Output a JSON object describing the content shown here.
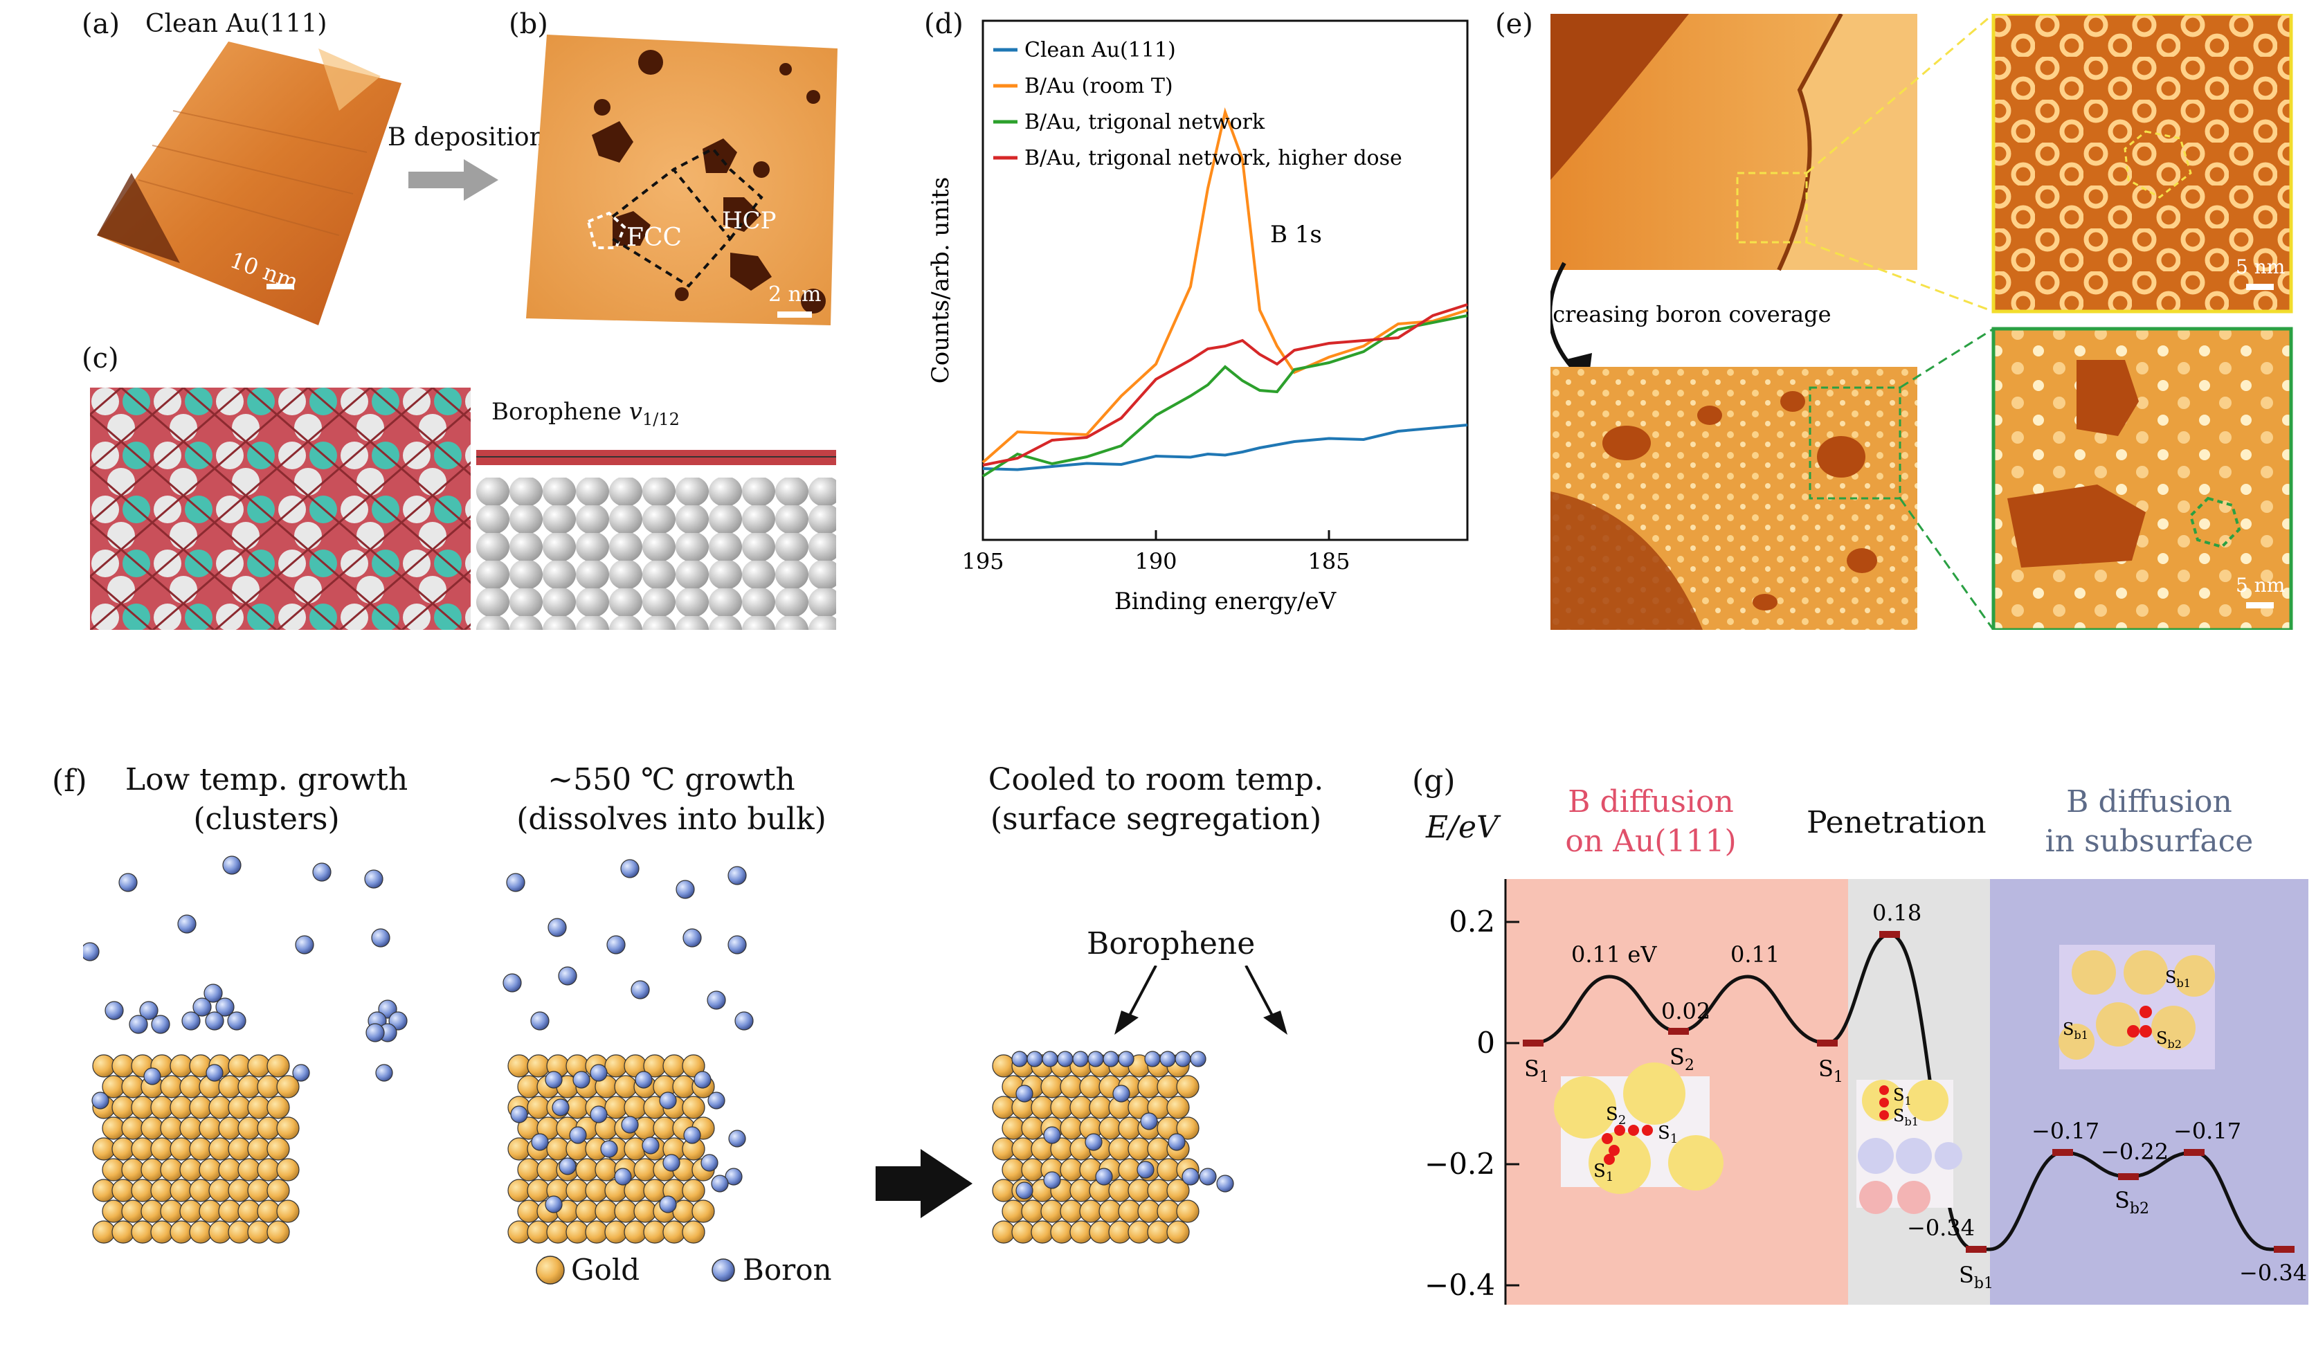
{
  "panels": {
    "a": {
      "letter": "(a)",
      "title": "Clean Au(111)",
      "scale": "10 nm"
    },
    "arrow_label": "B deposition",
    "b": {
      "letter": "(b)",
      "fcc": "FCC",
      "hcp": "HCP",
      "scale": "2 nm"
    },
    "c": {
      "letter": "(c)",
      "title_main": "Borophene ",
      "title_v": "v",
      "title_sub": "1/12"
    },
    "d": {
      "letter": "(d)",
      "annotation": "B 1s"
    },
    "e": {
      "letter": "(e)",
      "arrow_label": "Increasing boron coverage",
      "scale_top": "5 nm",
      "scale_bottom": "5 nm"
    },
    "f": {
      "letter": "(f)",
      "step1_line1": "Low temp. growth",
      "step1_line2": "(clusters)",
      "step2_line1": "~550 ℃ growth",
      "step2_line2": "(dissolves into bulk)",
      "step3_line1": "Cooled to room temp.",
      "step3_line2": "(surface segregation)",
      "borophene_label": "Borophene",
      "legend_gold": "Gold",
      "legend_boron": "Boron"
    },
    "g": {
      "letter": "(g)",
      "ylabel": "E/eV",
      "region1_line1": "B diffusion",
      "region1_line2": "on Au(111)",
      "region2": "Penetration",
      "region3_line1": "B diffusion",
      "region3_line2": "in subsurface",
      "site_s1": "S",
      "site_s1_sub": "1",
      "site_s2": "S",
      "site_s2_sub": "2",
      "site_sb1": "S",
      "site_sb1_sub": "b1",
      "site_sb2": "S",
      "site_sb2_sub": "b2",
      "yticks": [
        "0.2",
        "0",
        "−0.2",
        "−0.4"
      ],
      "barrier_labels": [
        "0.11 eV",
        "0.02",
        "0.11",
        "0.18",
        "−0.17",
        "−0.22",
        "−0.17",
        "−0.34",
        "−0.34"
      ],
      "inset_labels": {
        "s2": "S",
        "s2_sub": "2",
        "s1a": "S",
        "s1a_sub": "1",
        "s1b": "S",
        "s1b_sub": "1",
        "s1c": "S",
        "s1c_sub": "1",
        "sb1a": "S",
        "sb1a_sub": "b1",
        "sb1b": "S",
        "sb1b_sub": "b1",
        "sb1c": "S",
        "sb1c_sub": "b1",
        "sb2": "S",
        "sb2_sub": "b2"
      }
    }
  },
  "colors": {
    "clean": "#1f77b4",
    "room_t": "#ff8c1a",
    "trigonal": "#2ca02c",
    "higher_dose": "#d62728",
    "region1": "#f8c2b4",
    "region2": "#e2e2e2",
    "region3": "#b9b8e0"
  },
  "chart_data": {
    "type": "line",
    "title": "",
    "xlabel": "Binding energy/eV",
    "ylabel": "Counts/arb. units",
    "xlim": [
      195,
      181
    ],
    "x_reversed": true,
    "xticks": [
      "195",
      "190",
      "185"
    ],
    "x": [
      195,
      194,
      193,
      192,
      191,
      190,
      189,
      188.5,
      188,
      187.5,
      187,
      186.5,
      186,
      185,
      184,
      183,
      182,
      181
    ],
    "series": [
      {
        "name": "Clean Au(111)",
        "color": "#1f77b4",
        "values": [
          0.1,
          0.1,
          0.11,
          0.12,
          0.12,
          0.13,
          0.13,
          0.14,
          0.14,
          0.15,
          0.15,
          0.16,
          0.17,
          0.18,
          0.18,
          0.19,
          0.2,
          0.21
        ]
      },
      {
        "name": "B/Au (room T)",
        "color": "#ff8c1a",
        "values": [
          0.14,
          0.18,
          0.19,
          0.2,
          0.26,
          0.35,
          0.55,
          0.8,
          0.95,
          0.85,
          0.5,
          0.38,
          0.33,
          0.38,
          0.42,
          0.44,
          0.46,
          0.5
        ]
      },
      {
        "name": "B/Au, trigonal network",
        "color": "#2ca02c",
        "values": [
          0.1,
          0.12,
          0.11,
          0.14,
          0.18,
          0.22,
          0.28,
          0.32,
          0.33,
          0.31,
          0.3,
          0.31,
          0.33,
          0.36,
          0.4,
          0.42,
          0.45,
          0.48
        ]
      },
      {
        "name": "B/Au, trigonal network, higher dose",
        "color": "#d62728",
        "values": [
          0.12,
          0.15,
          0.16,
          0.18,
          0.24,
          0.3,
          0.36,
          0.4,
          0.42,
          0.4,
          0.38,
          0.37,
          0.37,
          0.4,
          0.42,
          0.44,
          0.46,
          0.5
        ]
      }
    ]
  }
}
